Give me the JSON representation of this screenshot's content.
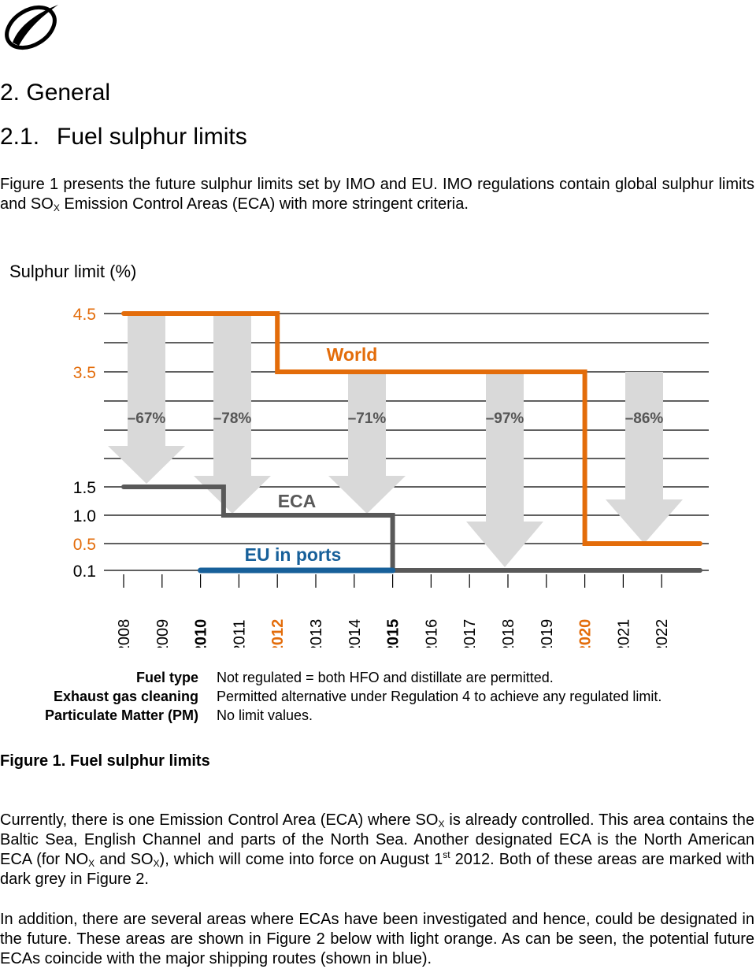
{
  "header": {
    "logo_icon": "swoosh-logo-icon"
  },
  "section": {
    "title": "2. General"
  },
  "subsection": {
    "number": "2.1.",
    "title": "Fuel sulphur limits"
  },
  "intro": {
    "part1": "Figure 1 presents the future sulphur limits set by IMO and EU. IMO regulations contain global sulphur limits and SO",
    "sub": "X",
    "part2": " Emission Control Areas (ECA) with more stringent criteria."
  },
  "chart_data": {
    "type": "line",
    "title": "",
    "ylabel": "Sulphur limit (%)",
    "y_ticks": [
      "4.5",
      "3.5",
      "1.5",
      "1.0",
      "0.5",
      "0.1"
    ],
    "x_ticks": [
      {
        "label": "2008",
        "style": "normal"
      },
      {
        "label": "2009",
        "style": "normal"
      },
      {
        "label": "2010",
        "style": "bold"
      },
      {
        "label": "2011",
        "style": "normal"
      },
      {
        "label": "2012",
        "style": "orange"
      },
      {
        "label": "2013",
        "style": "normal"
      },
      {
        "label": "2014",
        "style": "normal"
      },
      {
        "label": "2015",
        "style": "bold"
      },
      {
        "label": "2016",
        "style": "normal"
      },
      {
        "label": "2017",
        "style": "normal"
      },
      {
        "label": "2018",
        "style": "normal"
      },
      {
        "label": "2019",
        "style": "normal"
      },
      {
        "label": "2020",
        "style": "orange"
      },
      {
        "label": "2021",
        "style": "normal"
      },
      {
        "label": "2022",
        "style": "normal"
      }
    ],
    "series": [
      {
        "name": "World",
        "color": "#e36c0a",
        "points": [
          [
            2008,
            4.5
          ],
          [
            2012,
            4.5
          ],
          [
            2012,
            3.5
          ],
          [
            2020,
            3.5
          ],
          [
            2020,
            0.5
          ],
          [
            2023,
            0.5
          ]
        ]
      },
      {
        "name": "ECA",
        "color": "#595959",
        "points": [
          [
            2008,
            1.5
          ],
          [
            2010.6,
            1.5
          ],
          [
            2010.6,
            1.0
          ],
          [
            2015,
            1.0
          ],
          [
            2015,
            0.1
          ],
          [
            2023,
            0.1
          ]
        ]
      },
      {
        "name": "EU in ports",
        "color": "#17609a",
        "points": [
          [
            2010,
            0.1
          ],
          [
            2015,
            0.1
          ]
        ]
      }
    ],
    "reductions": [
      "–67%",
      "–78%",
      "–71%",
      "–97%",
      "–86%"
    ],
    "colors": {
      "orange": "#e36c0a",
      "grey": "#595959",
      "blue": "#17609a",
      "arrow": "#d9d9d9",
      "grid": "#000000"
    }
  },
  "legend": {
    "rows": [
      {
        "term": "Fuel type",
        "desc": "Not regulated = both HFO and distillate are permitted."
      },
      {
        "term": "Exhaust gas cleaning",
        "desc": "Permitted alternative under Regulation 4 to achieve any regulated limit."
      },
      {
        "term": "Particulate Matter (PM)",
        "desc": "No limit values."
      }
    ]
  },
  "caption": "Figure 1. Fuel sulphur limits",
  "para1": {
    "t1": "Currently, there is one Emission Control Area (ECA) where SO",
    "s1": "X",
    "t2": " is already controlled. This area contains the Baltic Sea, English Channel and parts of the North Sea. Another designated ECA is the North American ECA (for NO",
    "s2": "X",
    "t3": " and SO",
    "s3": "X",
    "t4": "), which will come into force on August 1",
    "sup1": "st",
    "t5": " 2012. Both of these areas are marked with dark grey in Figure 2."
  },
  "para2": {
    "text": "In addition, there are several areas where ECAs have been investigated and hence, could be designated in the future. These areas are shown in Figure 2 below with light orange. As can be seen, the potential future ECAs coincide with the major shipping routes (shown in blue)."
  }
}
